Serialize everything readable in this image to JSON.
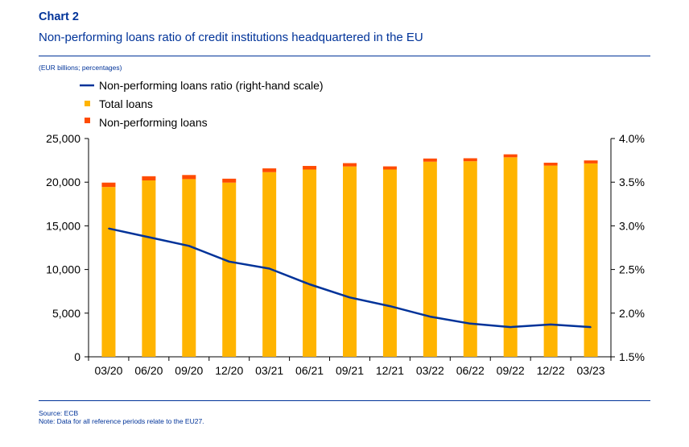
{
  "header": {
    "chart_label": "Chart 2",
    "title": "Non-performing loans ratio of credit institutions headquartered in the EU",
    "units": "(EUR billions; percentages)"
  },
  "footer": {
    "source": "Source: ECB",
    "note": "Note: Data for all reference periods relate to the EU27."
  },
  "colors": {
    "total_loans": "#FFB400",
    "npl": "#FF4B00",
    "ratio": "#003299",
    "text": "#003399"
  },
  "chart_data": {
    "type": "bar",
    "categories": [
      "03/20",
      "06/20",
      "09/20",
      "12/20",
      "03/21",
      "06/21",
      "09/21",
      "12/21",
      "03/22",
      "06/22",
      "09/22",
      "12/22",
      "03/23"
    ],
    "series": [
      {
        "name": "Total loans",
        "kind": "stacked-bar",
        "axis": "left",
        "values": [
          19450,
          20200,
          20350,
          19950,
          21150,
          21450,
          21800,
          21450,
          22350,
          22400,
          22850,
          21900,
          22150
        ]
      },
      {
        "name": "Non-performing loans",
        "kind": "stacked-bar",
        "axis": "left",
        "values": [
          500,
          480,
          470,
          450,
          430,
          410,
          380,
          360,
          360,
          340,
          340,
          330,
          340
        ]
      },
      {
        "name": "Non-performing loans ratio (right-hand scale)",
        "kind": "line",
        "axis": "right",
        "values": [
          2.97,
          2.87,
          2.77,
          2.59,
          2.51,
          2.33,
          2.18,
          2.08,
          1.96,
          1.88,
          1.84,
          1.87,
          1.84
        ]
      }
    ],
    "legend": [
      "Non-performing loans ratio (right-hand scale)",
      "Total loans",
      "Non-performing loans"
    ],
    "legend_position": "top-left",
    "y_left": {
      "min": 0,
      "max": 25000,
      "ticks": [
        0,
        5000,
        10000,
        15000,
        20000,
        25000
      ],
      "tick_labels": [
        "0",
        "5,000",
        "10,000",
        "15,000",
        "20,000",
        "25,000"
      ]
    },
    "y_right": {
      "min": 1.5,
      "max": 4.0,
      "ticks": [
        1.5,
        2.0,
        2.5,
        3.0,
        3.5,
        4.0
      ],
      "tick_labels": [
        "1.5%",
        "2.0%",
        "2.5%",
        "3.0%",
        "3.5%",
        "4.0%"
      ]
    },
    "grid": false
  }
}
